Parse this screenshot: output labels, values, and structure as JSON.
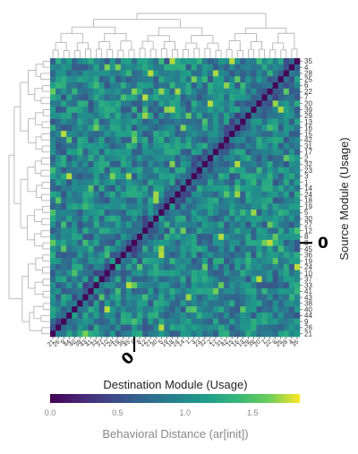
{
  "chart_data": {
    "type": "heatmap",
    "title": "",
    "xlabel": "Destination Module (Usage)",
    "ylabel": "Source Module (Usage)",
    "y_labels": [
      "35",
      "4",
      "28",
      "25",
      "6",
      "22",
      "7",
      "20",
      "39",
      "29",
      "13",
      "16",
      "15",
      "42",
      "31",
      "17",
      "2",
      "32",
      "23",
      "3",
      "1",
      "14",
      "24",
      "18",
      "19",
      "5",
      "30",
      "27",
      "12",
      "8",
      "0",
      "45",
      "36",
      "19",
      "24",
      "10",
      "37",
      "33",
      "41",
      "43",
      "38",
      "40",
      "44",
      "9",
      "26",
      "21"
    ],
    "x_labels": [
      "21",
      "26",
      "9",
      "44",
      "40",
      "38",
      "43",
      "41",
      "33",
      "37",
      "10",
      "24",
      "19",
      "36",
      "45",
      "0",
      "8",
      "12",
      "27",
      "30",
      "5",
      "19",
      "18",
      "24",
      "14",
      "1",
      "3",
      "23",
      "32",
      "2",
      "17",
      "31",
      "42",
      "15",
      "16",
      "13",
      "29",
      "39",
      "20",
      "7",
      "22",
      "6",
      "25",
      "28",
      "4",
      "35"
    ],
    "marker_label": "0",
    "value_range": [
      0,
      1.85
    ],
    "colorbar": {
      "title": "Behavioral Distance (ar[init])",
      "ticks": [
        "0.0",
        "0.5",
        "1.0",
        "1.5"
      ],
      "tick_values": [
        0,
        0.5,
        1.0,
        1.5
      ],
      "colorscale": "viridis"
    },
    "dendrograms": [
      "top",
      "left"
    ],
    "grid": false
  }
}
